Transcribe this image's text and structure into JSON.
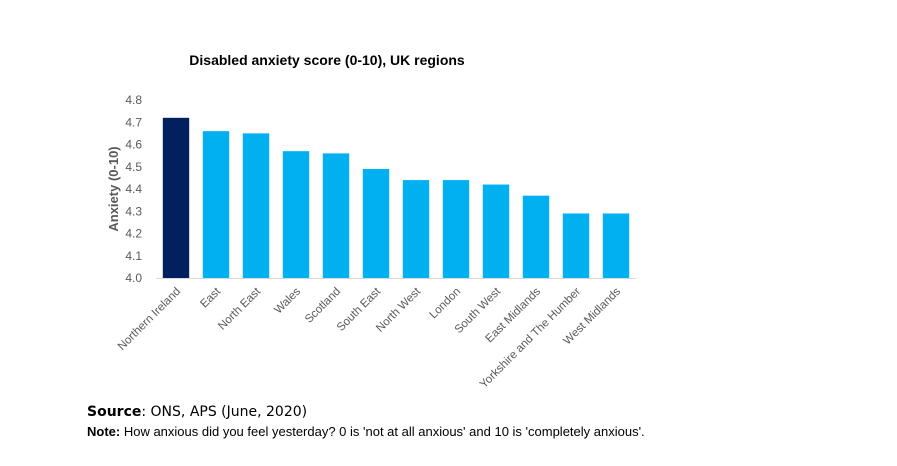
{
  "colors": {
    "highlight": "#002060",
    "bar": "#00B0F0",
    "axis": "#D9D9D9",
    "tick_text": "#595959"
  },
  "chart_data": {
    "type": "bar",
    "title": "Disabled anxiety score (0-10), UK regions",
    "xlabel": "",
    "ylabel": "Anxiety (0-10)",
    "ylim": [
      4.0,
      4.8
    ],
    "yticks": [
      "4.0",
      "4.1",
      "4.2",
      "4.3",
      "4.4",
      "4.5",
      "4.6",
      "4.7",
      "4.8"
    ],
    "grid": false,
    "legend": "none",
    "categories": [
      "Northern Ireland",
      "East",
      "North East",
      "Wales",
      "Scotland",
      "South East",
      "North West",
      "London",
      "South West",
      "East Midlands",
      "Yorkshire and The Humber",
      "West Midlands"
    ],
    "values": [
      4.72,
      4.66,
      4.65,
      4.57,
      4.56,
      4.49,
      4.44,
      4.44,
      4.42,
      4.37,
      4.29,
      4.29
    ],
    "highlight_index": 0
  },
  "footnotes": {
    "source_label": "Source",
    "source_text": ": ONS, APS (June, 2020)",
    "note_label": "Note:",
    "note_text": " How anxious did you feel yesterday? 0 is 'not at all anxious' and 10 is 'completely anxious'."
  }
}
